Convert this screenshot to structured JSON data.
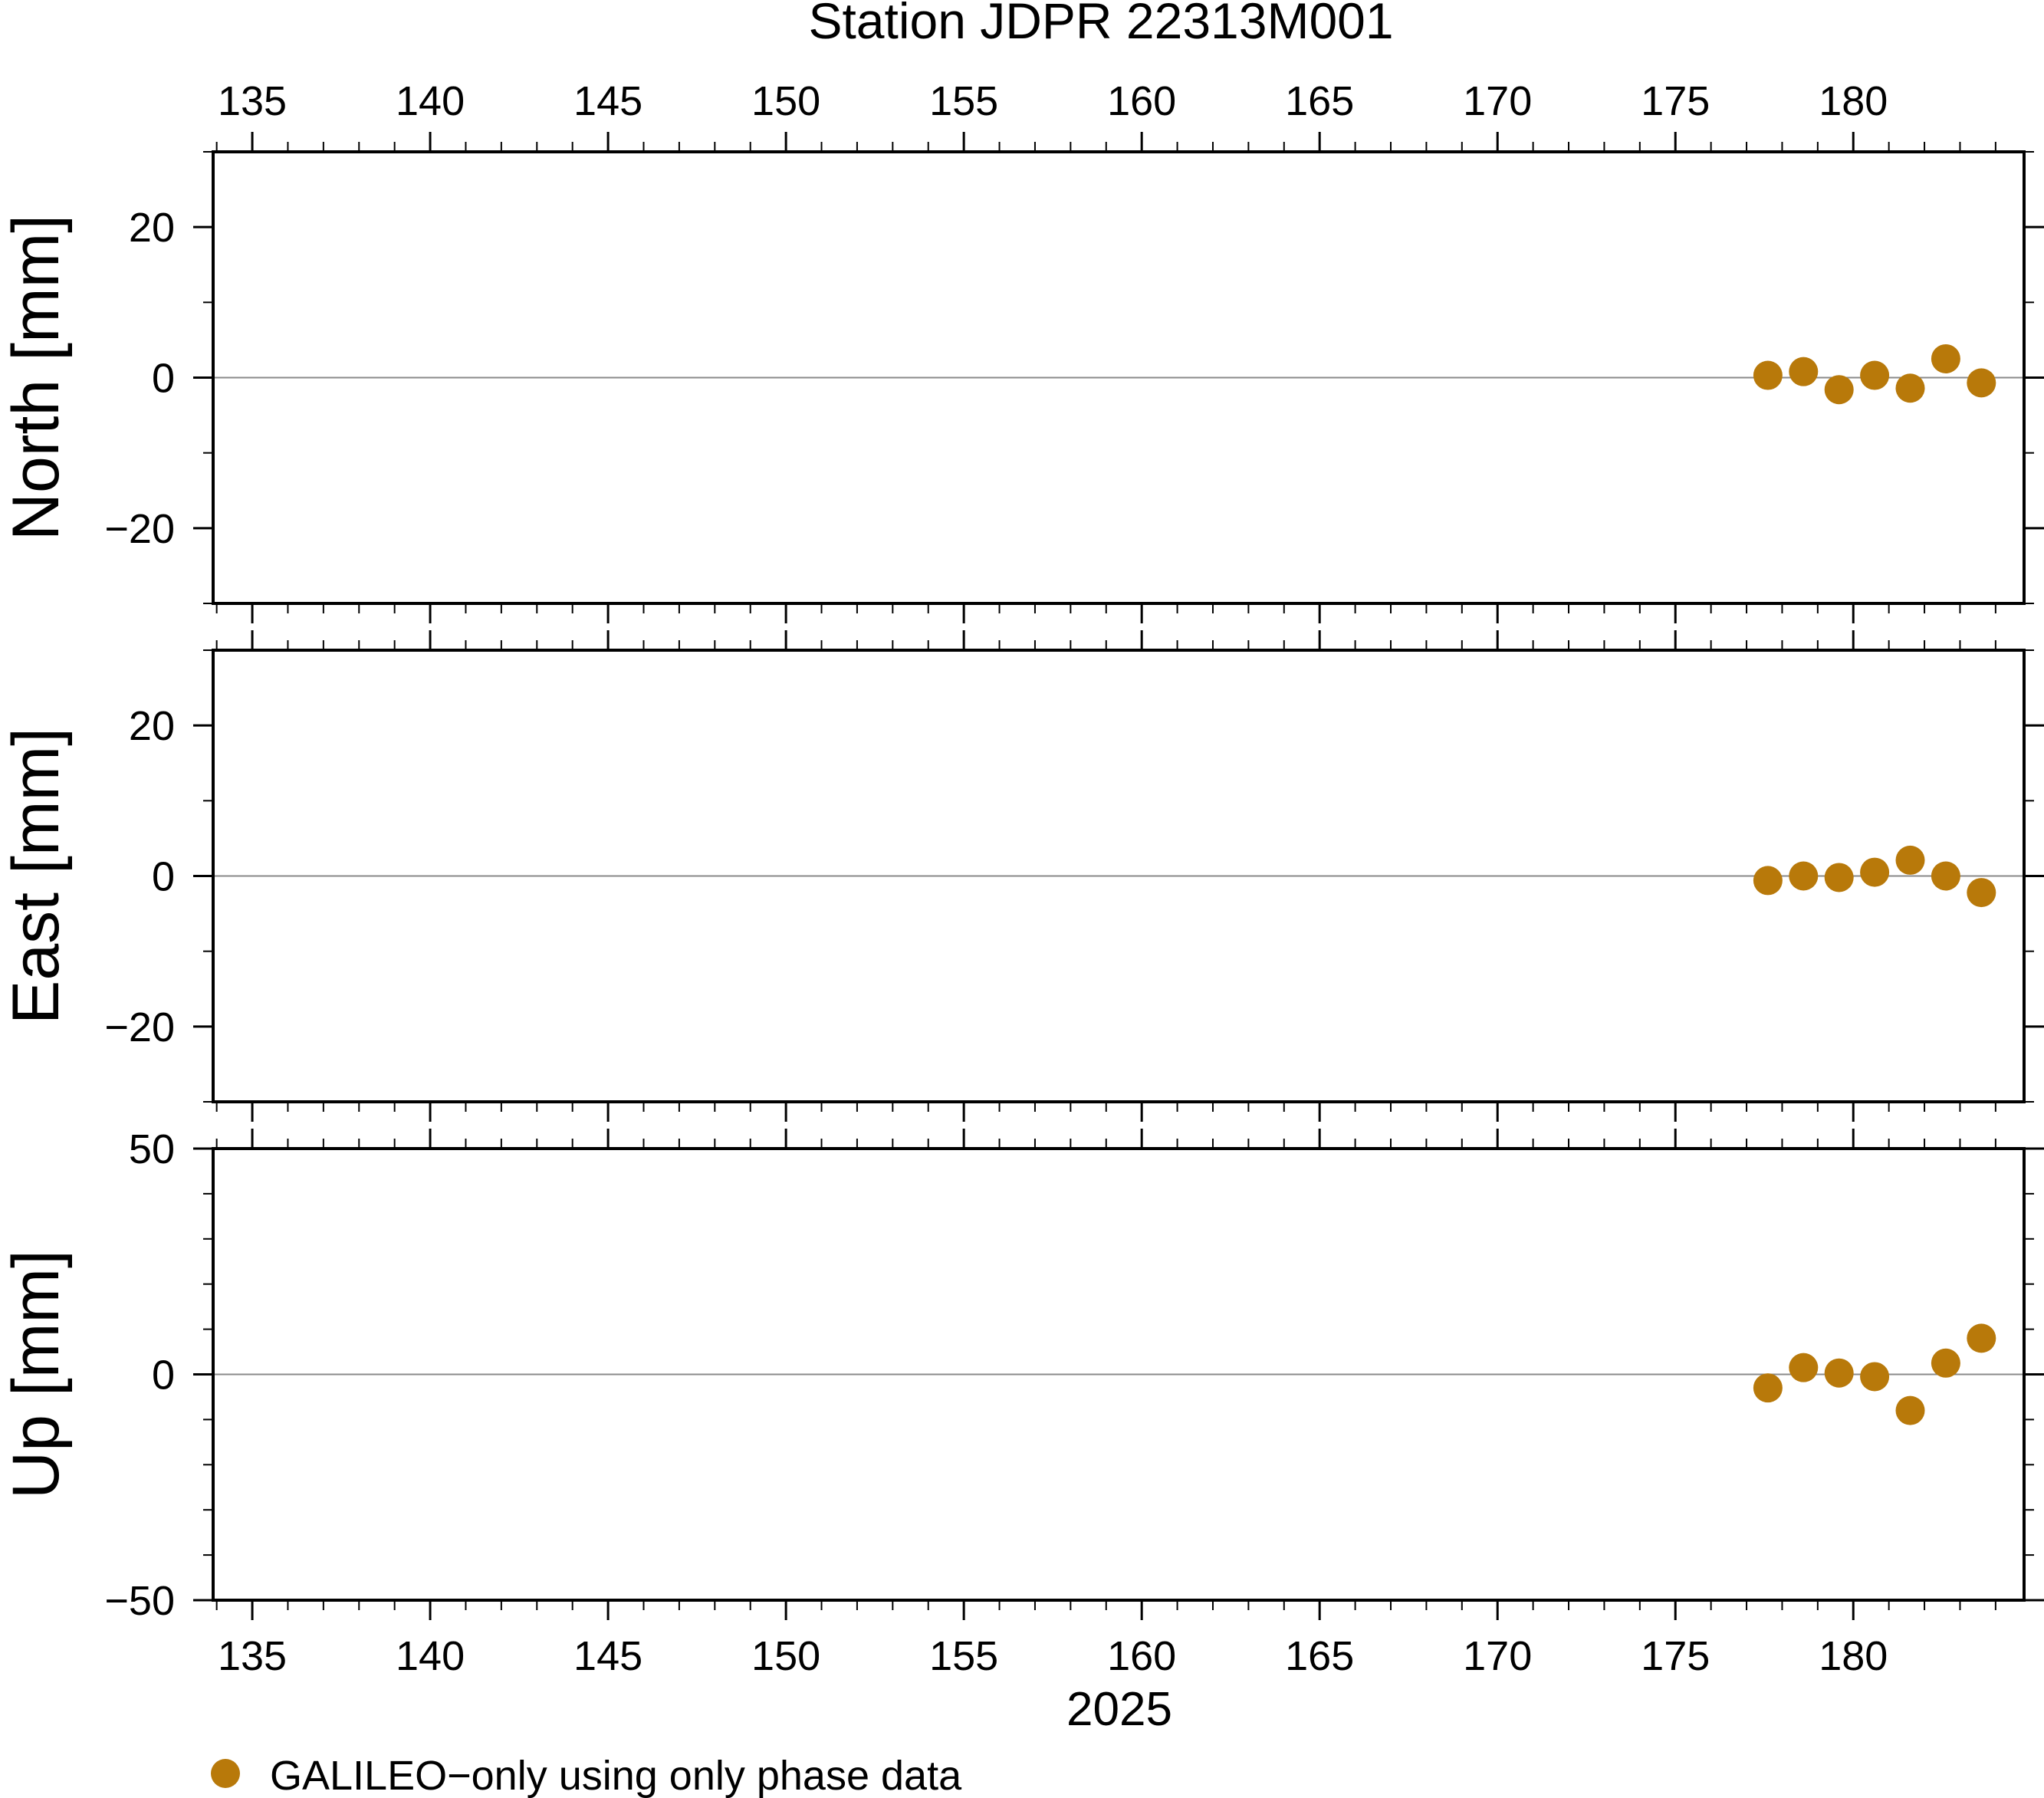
{
  "title": "Station JDPR 22313M001",
  "xlabel": "2025",
  "legend": {
    "label": "GALILEO−only using only phase data",
    "color": "#b8790a",
    "position": "bottom-left"
  },
  "chart_data": {
    "type": "scatter",
    "xlim": [
      133.9,
      184.8
    ],
    "x_major_step": 5,
    "x_minor_step": 1,
    "x_ticks": [
      135,
      140,
      145,
      150,
      155,
      160,
      165,
      170,
      175,
      180
    ],
    "x": [
      177.6,
      178.6,
      179.6,
      180.6,
      181.6,
      182.6,
      183.6
    ],
    "panels": [
      {
        "name": "north",
        "ylabel": "North [mm]",
        "ylim": [
          -30,
          30
        ],
        "y_ticks": [
          20,
          0,
          -20
        ],
        "y_tick_labels": [
          "20",
          "0",
          "−20"
        ],
        "y_minor_step": 10,
        "values": [
          0.3,
          0.8,
          -1.6,
          0.3,
          -1.4,
          2.5,
          -0.7
        ]
      },
      {
        "name": "east",
        "ylabel": "East [mm]",
        "ylim": [
          -30,
          30
        ],
        "y_ticks": [
          20,
          0,
          -20
        ],
        "y_tick_labels": [
          "20",
          "0",
          "−20"
        ],
        "y_minor_step": 10,
        "values": [
          -0.6,
          0.0,
          -0.2,
          0.5,
          2.1,
          0.0,
          -2.2
        ]
      },
      {
        "name": "up",
        "ylabel": "Up [mm]",
        "ylim": [
          -50,
          50
        ],
        "y_ticks": [
          50,
          0,
          -50
        ],
        "y_tick_labels": [
          "50",
          "0",
          "−50"
        ],
        "y_minor_step": 10,
        "values": [
          -3.0,
          1.5,
          0.3,
          -0.5,
          -8.0,
          2.5,
          8.0
        ]
      }
    ],
    "grid": false,
    "zero_line": true
  }
}
